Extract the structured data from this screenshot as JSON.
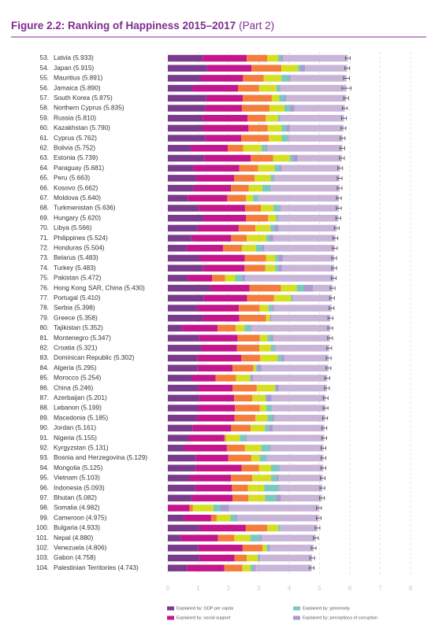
{
  "chart_data": {
    "type": "stacked-bar",
    "title": "Figure 2.2: Ranking of Happiness 2015–2017",
    "title_suffix": "(Part 2)",
    "ranks": [
      "53.",
      "54.",
      "55.",
      "56.",
      "57.",
      "58.",
      "59.",
      "60.",
      "61.",
      "62.",
      "63.",
      "64.",
      "65.",
      "66.",
      "67.",
      "68.",
      "69.",
      "70.",
      "71.",
      "72.",
      "73.",
      "74.",
      "75.",
      "76.",
      "77.",
      "78.",
      "79.",
      "80.",
      "81.",
      "82.",
      "83.",
      "84.",
      "85.",
      "86.",
      "87.",
      "88.",
      "89.",
      "90.",
      "91.",
      "92.",
      "93.",
      "94.",
      "95.",
      "96.",
      "97.",
      "98.",
      "99.",
      "100.",
      "101.",
      "102.",
      "103.",
      "104."
    ],
    "categories": [
      "Latvia (5.933)",
      "Japan (5.915)",
      "Mauritius (5.891)",
      "Jamaica (5.890)",
      "South Korea (5.875)",
      "Northern Cyprus (5.835)",
      "Russia (5.810)",
      "Kazakhstan (5.790)",
      "Cyprus (5.762)",
      "Bolivia (5.752)",
      "Estonia (5.739)",
      "Paraguay (5.681)",
      "Peru (5.663)",
      "Kosovo (5.662)",
      "Moldova (5.640)",
      "Turkmenistan (5.636)",
      "Hungary (5.620)",
      "Libya (5.566)",
      "Philippines (5.524)",
      "Honduras (5.504)",
      "Belarus (5.483)",
      "Turkey (5.483)",
      "Pakistan (5.472)",
      "Hong Kong SAR, China (5.430)",
      "Portugal (5.410)",
      "Serbia (5.398)",
      "Greece (5.358)",
      "Tajikistan (5.352)",
      "Montenegro (5.347)",
      "Croatia (5.321)",
      "Dominican Republic (5.302)",
      "Algeria (5.295)",
      "Morocco (5.254)",
      "China (5.246)",
      "Azerbaijan (5.201)",
      "Lebanon (5.199)",
      "Macedonia (5.185)",
      "Jordan (5.161)",
      "Nigeria (5.155)",
      "Kyrgyzstan (5.131)",
      "Bosnia and Herzegovina (5.129)",
      "Mongolia (5.125)",
      "Vietnam (5.103)",
      "Indonesia (5.093)",
      "Bhutan (5.082)",
      "Somalia (4.982)",
      "Cameroon (4.975)",
      "Bulgaria (4.933)",
      "Nepal (4.880)",
      "Venezuela (4.806)",
      "Gabon (4.758)",
      "Palestinian Territories (4.743)"
    ],
    "series": [
      {
        "name": "Explained by: GDP per capita",
        "color": "#7b3b8c",
        "values": [
          1.148,
          1.294,
          1.09,
          0.819,
          1.266,
          1.229,
          1.151,
          1.143,
          1.229,
          0.751,
          1.2,
          0.835,
          0.934,
          0.855,
          0.657,
          1.016,
          1.171,
          0.985,
          0.775,
          0.62,
          1.039,
          1.148,
          0.652,
          1.405,
          1.188,
          0.975,
          1.154,
          0.474,
          1.017,
          1.115,
          0.982,
          0.979,
          0.779,
          0.989,
          1.024,
          0.987,
          0.959,
          0.822,
          0.689,
          0.53,
          0.915,
          0.914,
          0.715,
          0.899,
          0.796,
          0.0,
          0.535,
          1.054,
          0.425,
          0.996,
          1.036,
          0.642
        ]
      },
      {
        "name": "Explained by: social support",
        "color": "#c4158c",
        "values": [
          1.454,
          1.462,
          1.387,
          1.493,
          1.204,
          1.211,
          1.479,
          1.516,
          1.191,
          1.223,
          1.532,
          1.522,
          1.249,
          1.23,
          1.301,
          1.533,
          1.401,
          1.35,
          1.312,
          1.205,
          1.498,
          1.38,
          0.81,
          1.29,
          1.429,
          1.369,
          1.202,
          1.166,
          1.279,
          1.161,
          1.441,
          1.154,
          0.797,
          1.142,
          1.161,
          1.224,
          1.239,
          1.265,
          1.172,
          1.416,
          1.078,
          1.517,
          1.365,
          1.215,
          1.335,
          0.712,
          0.891,
          1.515,
          1.228,
          1.469,
          1.164,
          1.217
        ]
      },
      {
        "color": "#f47c3c",
        "values": [
          0.671,
          0.988,
          0.684,
          0.693,
          0.955,
          0.909,
          0.599,
          0.631,
          0.909,
          0.508,
          0.737,
          0.615,
          0.674,
          0.578,
          0.62,
          0.517,
          0.732,
          0.553,
          0.513,
          0.622,
          0.7,
          0.686,
          0.424,
          1.03,
          0.884,
          0.685,
          0.879,
          0.598,
          0.729,
          0.737,
          0.614,
          0.687,
          0.669,
          0.799,
          0.603,
          0.815,
          0.691,
          0.645,
          0.048,
          0.594,
          0.758,
          0.575,
          0.702,
          0.522,
          0.527,
          0.115,
          0.182,
          0.712,
          0.539,
          0.657,
          0.404,
          0.602
        ]
      },
      {
        "color": "#d7df23",
        "values": [
          0.363,
          0.553,
          0.584,
          0.575,
          0.244,
          0.495,
          0.399,
          0.454,
          0.423,
          0.606,
          0.553,
          0.541,
          0.53,
          0.448,
          0.232,
          0.417,
          0.259,
          0.496,
          0.643,
          0.459,
          0.307,
          0.324,
          0.334,
          0.524,
          0.562,
          0.288,
          0.131,
          0.292,
          0.259,
          0.38,
          0.578,
          0.077,
          0.46,
          0.597,
          0.43,
          0.216,
          0.394,
          0.468,
          0.462,
          0.54,
          0.28,
          0.395,
          0.618,
          0.538,
          0.541,
          0.674,
          0.454,
          0.359,
          0.526,
          0.133,
          0.356,
          0.266
        ]
      },
      {
        "name": "Explained by: generosity",
        "color": "#7ac9bf",
        "values": [
          0.092,
          0.079,
          0.245,
          0.096,
          0.175,
          0.179,
          0.065,
          0.148,
          0.202,
          0.141,
          0.086,
          0.162,
          0.092,
          0.274,
          0.171,
          0.199,
          0.061,
          0.116,
          0.12,
          0.197,
          0.101,
          0.106,
          0.216,
          0.246,
          0.055,
          0.134,
          0.0,
          0.187,
          0.111,
          0.12,
          0.12,
          0.055,
          0.026,
          0.029,
          0.031,
          0.166,
          0.173,
          0.13,
          0.201,
          0.281,
          0.216,
          0.253,
          0.177,
          0.484,
          0.364,
          0.238,
          0.183,
          0.064,
          0.302,
          0.056,
          0.032,
          0.086
        ]
      },
      {
        "name": "Explained by: perceptions of corruption",
        "color": "#a99bd0",
        "values": [
          0.066,
          0.15,
          0.05,
          0.031,
          0.051,
          0.154,
          0.025,
          0.121,
          0.035,
          0.054,
          0.174,
          0.074,
          0.034,
          0.023,
          0.0,
          0.037,
          0.022,
          0.148,
          0.105,
          0.074,
          0.154,
          0.109,
          0.113,
          0.291,
          0.017,
          0.043,
          0.044,
          0.034,
          0.081,
          0.039,
          0.106,
          0.135,
          0.074,
          0.103,
          0.176,
          0.027,
          0.052,
          0.134,
          0.032,
          0.035,
          0.0,
          0.032,
          0.079,
          0.018,
          0.171,
          0.282,
          0.043,
          0.009,
          0.078,
          0.052,
          0.052,
          0.076
        ]
      },
      {
        "color": "#c9b5d8",
        "values": [
          2.139,
          1.389,
          1.851,
          2.183,
          1.98,
          1.658,
          2.092,
          1.777,
          1.773,
          2.469,
          1.457,
          1.932,
          2.15,
          2.254,
          2.659,
          1.917,
          1.974,
          1.918,
          2.056,
          2.327,
          1.684,
          1.73,
          2.923,
          0.644,
          1.275,
          1.904,
          1.948,
          2.601,
          1.871,
          1.769,
          1.461,
          2.208,
          2.449,
          1.587,
          1.776,
          1.764,
          1.677,
          1.697,
          2.551,
          1.735,
          1.882,
          1.439,
          1.447,
          1.417,
          1.348,
          2.961,
          2.687,
          1.22,
          1.782,
          1.443,
          1.714,
          1.854
        ]
      }
    ],
    "errors": [
      0.08,
      0.08,
      0.1,
      0.15,
      0.08,
      0.08,
      0.08,
      0.08,
      0.08,
      0.08,
      0.08,
      0.08,
      0.08,
      0.08,
      0.08,
      0.08,
      0.08,
      0.08,
      0.08,
      0.08,
      0.08,
      0.08,
      0.08,
      0.08,
      0.08,
      0.08,
      0.08,
      0.08,
      0.08,
      0.08,
      0.08,
      0.08,
      0.08,
      0.08,
      0.08,
      0.08,
      0.08,
      0.08,
      0.08,
      0.08,
      0.08,
      0.08,
      0.08,
      0.08,
      0.08,
      0.08,
      0.08,
      0.08,
      0.08,
      0.08,
      0.08,
      0.08
    ],
    "xlim": [
      0,
      8
    ],
    "xticks": [
      0,
      1,
      2,
      3,
      4,
      5,
      6,
      7,
      8
    ],
    "grid": true
  }
}
